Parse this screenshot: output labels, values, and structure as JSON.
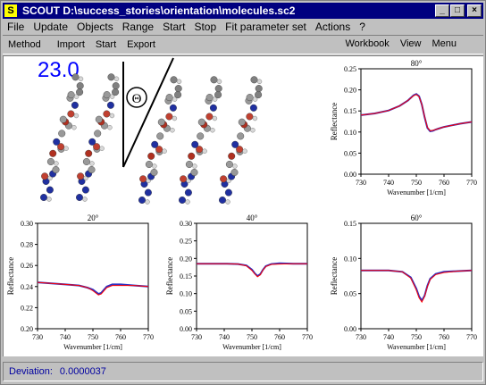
{
  "window": {
    "title": "SCOUT  D:\\success_stories\\orientation\\molecules.sc2",
    "app_icon_letter": "S",
    "minimize_glyph": "_",
    "maximize_glyph": "□",
    "close_glyph": "×"
  },
  "menu": {
    "items": [
      "File",
      "Update",
      "Objects",
      "Range",
      "Start",
      "Stop",
      "Fit parameter set",
      "Actions",
      "?"
    ]
  },
  "toolbar": {
    "left": [
      "Method",
      "Import",
      "Start",
      "Export"
    ],
    "right": [
      "Workbook",
      "View",
      "Menu"
    ]
  },
  "display": {
    "value": "23.0",
    "theta_symbol": "Θ"
  },
  "status": {
    "label": "Deviation:",
    "value": "0.0000037"
  },
  "colors": {
    "measured": "#3030c0",
    "simulated": "#ff0000",
    "status_text": "#0000a0",
    "value_text": "#0000ff"
  },
  "chart_data": [
    {
      "id": "c80",
      "type": "line",
      "title": "80°",
      "xlabel": "Wavenumber [1/cm]",
      "ylabel": "Reflectance",
      "xlim": [
        730,
        770
      ],
      "ylim": [
        0,
        0.25
      ],
      "xticks": [
        "730",
        "740",
        "750",
        "760",
        "770"
      ],
      "yticks": [
        "0.00",
        "0.05",
        "0.10",
        "0.15",
        "0.20",
        "0.25"
      ],
      "series": [
        {
          "x": [
            730,
            735,
            740,
            744,
            747,
            749,
            750,
            751,
            752,
            753,
            754,
            755,
            756,
            757,
            758,
            760,
            763,
            766,
            770
          ],
          "values": [
            0.14,
            0.144,
            0.151,
            0.162,
            0.175,
            0.187,
            0.19,
            0.185,
            0.165,
            0.135,
            0.11,
            0.102,
            0.103,
            0.106,
            0.108,
            0.112,
            0.116,
            0.12,
            0.124
          ]
        },
        {
          "x": [
            730,
            735,
            740,
            744,
            747,
            749,
            750,
            751,
            752,
            753,
            754,
            755,
            756,
            757,
            758,
            760,
            763,
            766,
            770
          ],
          "values": [
            0.14,
            0.144,
            0.151,
            0.162,
            0.175,
            0.186,
            0.189,
            0.184,
            0.165,
            0.136,
            0.111,
            0.103,
            0.104,
            0.106,
            0.108,
            0.112,
            0.116,
            0.12,
            0.124
          ]
        }
      ]
    },
    {
      "id": "c20",
      "type": "line",
      "title": "20°",
      "xlabel": "Wavenumber [1/cm]",
      "ylabel": "Reflectance",
      "xlim": [
        730,
        770
      ],
      "ylim": [
        0.2,
        0.3
      ],
      "xticks": [
        "730",
        "740",
        "750",
        "760",
        "770"
      ],
      "yticks": [
        "0.20",
        "0.22",
        "0.24",
        "0.26",
        "0.28",
        "0.30"
      ],
      "series": [
        {
          "x": [
            730,
            735,
            740,
            745,
            748,
            750,
            751,
            752,
            753,
            754,
            755,
            757,
            760,
            765,
            770
          ],
          "values": [
            0.244,
            0.243,
            0.242,
            0.241,
            0.239,
            0.237,
            0.235,
            0.233,
            0.234,
            0.237,
            0.24,
            0.242,
            0.242,
            0.241,
            0.24
          ]
        },
        {
          "x": [
            730,
            735,
            740,
            745,
            748,
            750,
            751,
            752,
            753,
            754,
            755,
            757,
            760,
            765,
            770
          ],
          "values": [
            0.244,
            0.243,
            0.242,
            0.241,
            0.239,
            0.236,
            0.234,
            0.232,
            0.233,
            0.236,
            0.239,
            0.241,
            0.241,
            0.241,
            0.24
          ]
        }
      ]
    },
    {
      "id": "c40",
      "type": "line",
      "title": "40°",
      "xlabel": "Wavenumber [1/cm]",
      "ylabel": "Reflectance",
      "xlim": [
        730,
        770
      ],
      "ylim": [
        0,
        0.3
      ],
      "xticks": [
        "730",
        "740",
        "750",
        "760",
        "770"
      ],
      "yticks": [
        "0.00",
        "0.05",
        "0.10",
        "0.15",
        "0.20",
        "0.25",
        "0.30"
      ],
      "series": [
        {
          "x": [
            730,
            740,
            745,
            748,
            750,
            751,
            752,
            753,
            754,
            755,
            757,
            760,
            765,
            770
          ],
          "values": [
            0.185,
            0.185,
            0.184,
            0.18,
            0.168,
            0.158,
            0.15,
            0.155,
            0.168,
            0.178,
            0.184,
            0.186,
            0.185,
            0.185
          ]
        },
        {
          "x": [
            730,
            740,
            745,
            748,
            750,
            751,
            752,
            753,
            754,
            755,
            757,
            760,
            765,
            770
          ],
          "values": [
            0.185,
            0.185,
            0.184,
            0.179,
            0.166,
            0.156,
            0.148,
            0.153,
            0.167,
            0.177,
            0.183,
            0.184,
            0.185,
            0.185
          ]
        }
      ]
    },
    {
      "id": "c60",
      "type": "line",
      "title": "60°",
      "xlabel": "Wavenumber [1/cm]",
      "ylabel": "Reflectance",
      "xlim": [
        730,
        770
      ],
      "ylim": [
        0,
        0.15
      ],
      "xticks": [
        "730",
        "740",
        "750",
        "760",
        "770"
      ],
      "yticks": [
        "0.00",
        "0.05",
        "0.10",
        "0.15"
      ],
      "series": [
        {
          "x": [
            730,
            740,
            745,
            748,
            750,
            751,
            752,
            753,
            754,
            755,
            757,
            760,
            765,
            770
          ],
          "values": [
            0.083,
            0.083,
            0.081,
            0.073,
            0.057,
            0.046,
            0.04,
            0.047,
            0.061,
            0.071,
            0.078,
            0.081,
            0.082,
            0.083
          ]
        },
        {
          "x": [
            730,
            740,
            745,
            748,
            750,
            751,
            752,
            753,
            754,
            755,
            757,
            760,
            765,
            770
          ],
          "values": [
            0.083,
            0.083,
            0.081,
            0.072,
            0.055,
            0.044,
            0.038,
            0.046,
            0.06,
            0.07,
            0.077,
            0.08,
            0.082,
            0.083
          ]
        }
      ]
    }
  ]
}
